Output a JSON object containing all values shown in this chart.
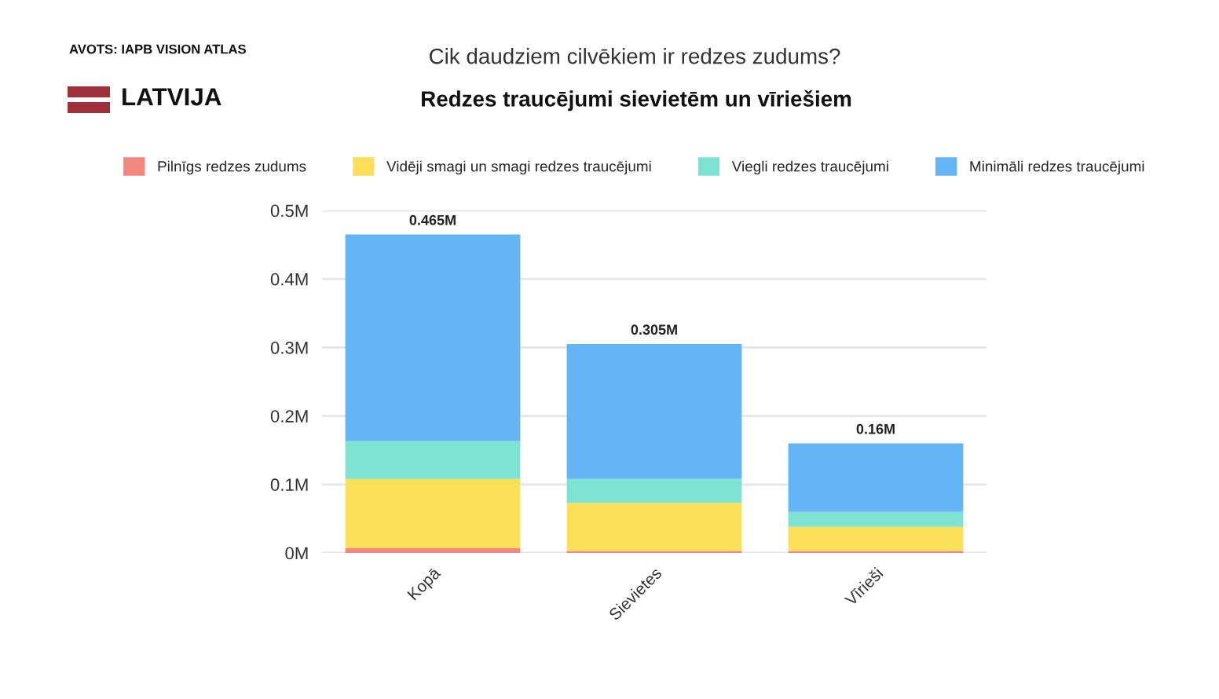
{
  "chart_data": {
    "type": "bar",
    "title": "Cik daudziem cilvēkiem ir redzes zudums?",
    "subtitle": "Redzes traucējumi sievietēm un vīriešiem",
    "annotations": [
      "AVOTS: IAPB VISION ATLAS",
      "LATVIJA"
    ],
    "categories": [
      "Kopā",
      "Sievietes",
      "Vīrieši"
    ],
    "stacked": true,
    "series": [
      {
        "name": "Pilnīgs redzes zudums",
        "color": "#f4877f",
        "values": [
          0.007,
          0.003,
          0.003
        ]
      },
      {
        "name": "Vidēji smagi un smagi redzes traucējumi",
        "color": "#fde05a",
        "values": [
          0.101,
          0.07,
          0.035
        ]
      },
      {
        "name": "Viegli redzes traucējumi",
        "color": "#7de3d0",
        "values": [
          0.055,
          0.035,
          0.022
        ]
      },
      {
        "name": "Minimāli redzes traucējumi",
        "color": "#64b5f6",
        "values": [
          0.302,
          0.197,
          0.1
        ]
      }
    ],
    "totals": [
      "0.465M",
      "0.305M",
      "0.16M"
    ],
    "ylim": [
      0,
      0.5
    ],
    "yticks": [
      {
        "value": 0,
        "label": "0M"
      },
      {
        "value": 0.1,
        "label": "0.1M"
      },
      {
        "value": 0.2,
        "label": "0.2M"
      },
      {
        "value": 0.3,
        "label": "0.3M"
      },
      {
        "value": 0.4,
        "label": "0.4M"
      },
      {
        "value": 0.5,
        "label": "0.5M"
      }
    ],
    "grid": "y",
    "legend": "top"
  }
}
